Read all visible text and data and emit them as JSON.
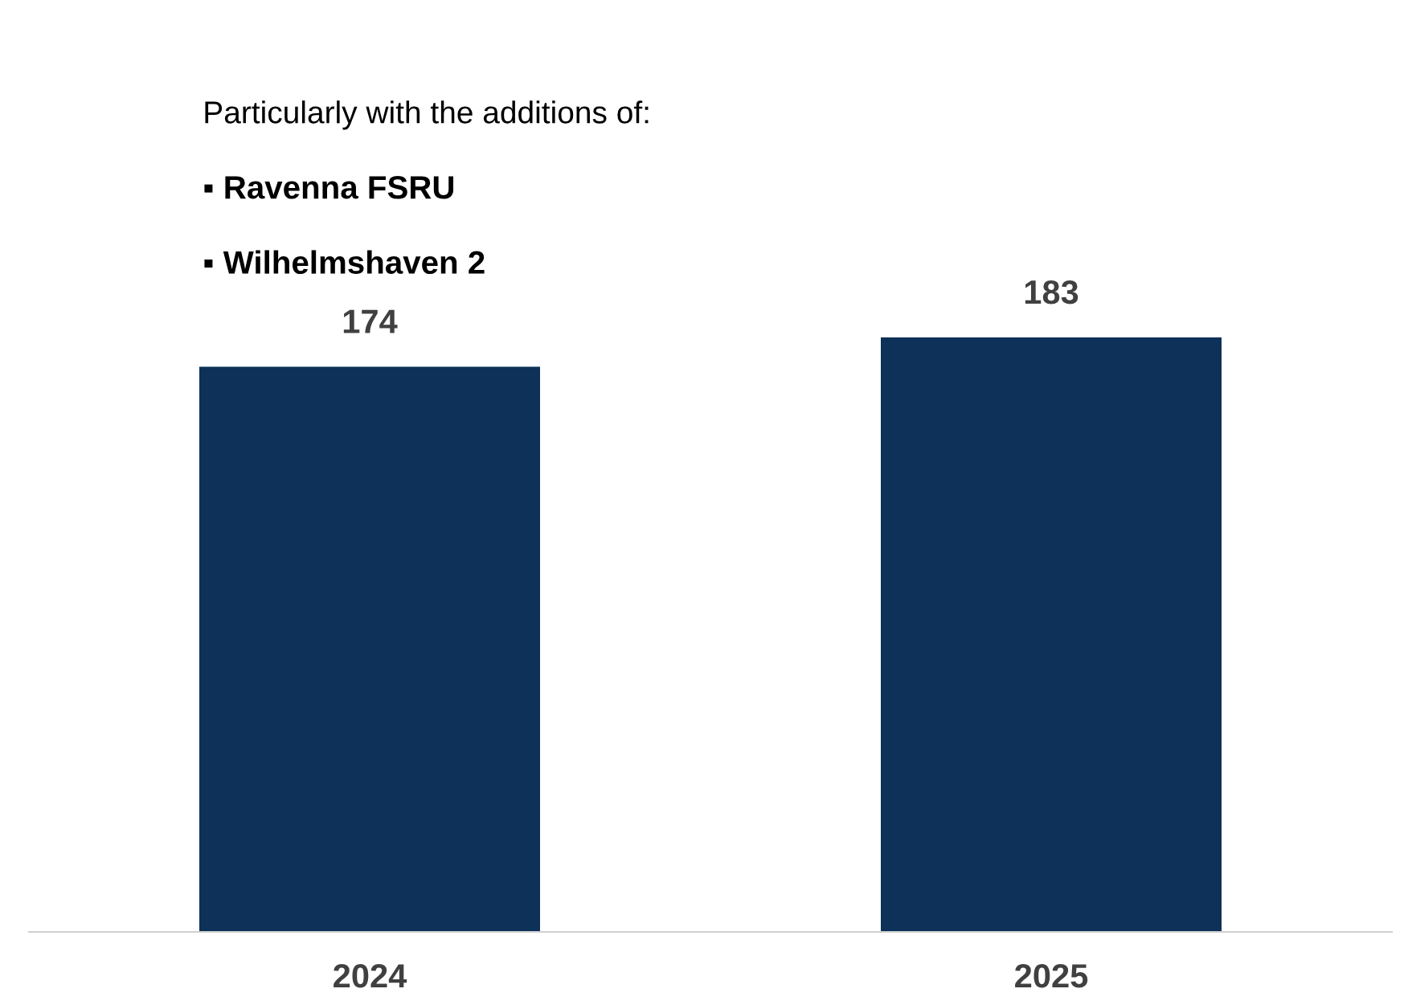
{
  "chart_data": {
    "type": "bar",
    "categories": [
      "2024",
      "2025"
    ],
    "values": [
      174,
      183
    ],
    "color": "#0d3158",
    "data_labels": true,
    "tick_labels": "x",
    "grid": false,
    "annotations": [
      "Particularly with the additions of:",
      "▪ Ravenna FSRU",
      "▪ Wilhelmshaven 2"
    ]
  }
}
